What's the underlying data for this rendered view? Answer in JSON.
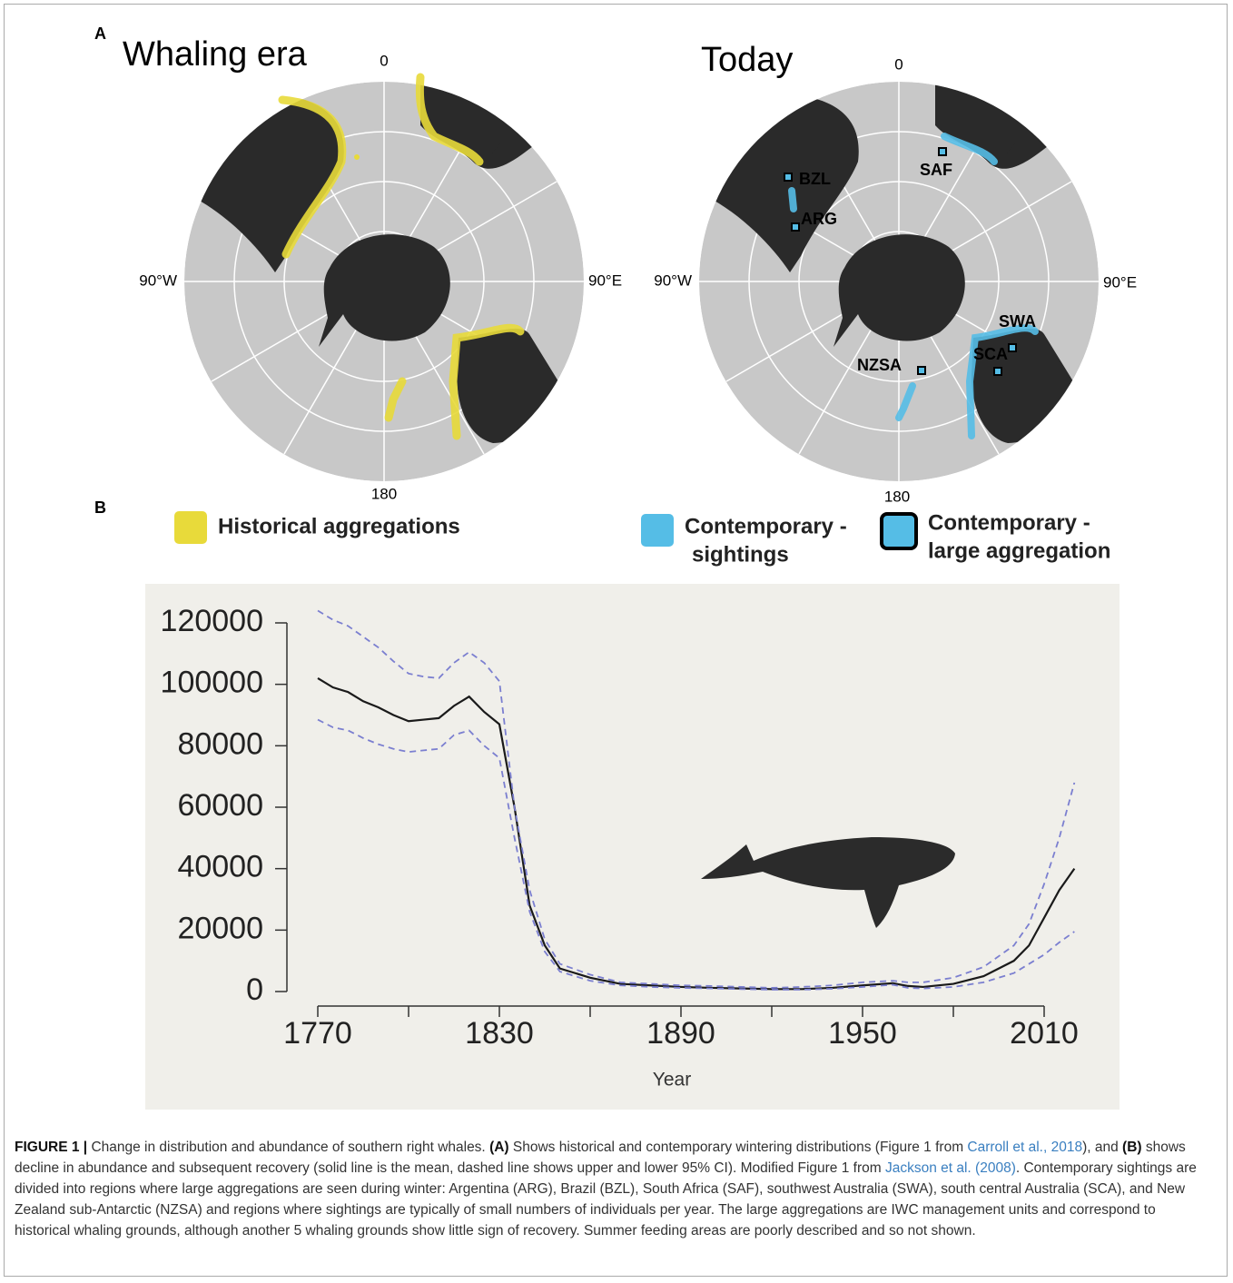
{
  "panel_a": {
    "label": "A",
    "maps": [
      {
        "title": "Whaling era",
        "directions": {
          "top": "0",
          "left": "90°W",
          "right": "90°E",
          "bottom": "180"
        }
      },
      {
        "title": "Today",
        "directions": {
          "top": "0",
          "left": "90°W",
          "right": "90°E",
          "bottom": "180"
        },
        "sites": [
          "BZL",
          "ARG",
          "SAF",
          "SWA",
          "SCA",
          "NZSA"
        ]
      }
    ],
    "legend": {
      "historical": "Historical aggregations",
      "sightings": [
        "Contemporary -",
        "sightings"
      ],
      "large": [
        "Contemporary -",
        "large aggregation"
      ]
    }
  },
  "panel_b": {
    "label": "B"
  },
  "chart_data": {
    "type": "line",
    "x_label": "Year",
    "x": [
      1770,
      1775,
      1780,
      1785,
      1790,
      1795,
      1800,
      1805,
      1810,
      1815,
      1820,
      1825,
      1830,
      1835,
      1840,
      1845,
      1850,
      1860,
      1870,
      1880,
      1890,
      1900,
      1910,
      1920,
      1930,
      1940,
      1950,
      1960,
      1965,
      1970,
      1980,
      1990,
      2000,
      2005,
      2010,
      2015,
      2020
    ],
    "series": [
      {
        "color": "#1a1a1a",
        "dash": false,
        "values": [
          102000,
          99000,
          97500,
          94500,
          92500,
          90000,
          88000,
          88500,
          89000,
          93000,
          96000,
          91000,
          87000,
          60000,
          28000,
          15000,
          7500,
          4500,
          2500,
          2000,
          1500,
          1200,
          1000,
          800,
          800,
          1200,
          2000,
          2700,
          1800,
          1500,
          2500,
          5000,
          10000,
          15000,
          24000,
          33000,
          40000
        ]
      },
      {
        "color": "#7b7fd0",
        "dash": true,
        "values": [
          124000,
          121000,
          119000,
          115500,
          112000,
          107500,
          103500,
          102500,
          102000,
          107000,
          110500,
          107000,
          101000,
          60000,
          33000,
          17000,
          9000,
          5500,
          3000,
          2500,
          2000,
          1800,
          1500,
          1200,
          1500,
          2000,
          3000,
          3500,
          3000,
          3000,
          4500,
          8000,
          15000,
          22000,
          35000,
          50000,
          68000
        ]
      },
      {
        "color": "#7b7fd0",
        "dash": true,
        "values": [
          88500,
          86000,
          85000,
          82500,
          80500,
          79000,
          78000,
          78500,
          79000,
          83500,
          85000,
          80000,
          76000,
          50000,
          26000,
          13000,
          6500,
          3500,
          2000,
          1500,
          1200,
          1000,
          800,
          600,
          600,
          900,
          1500,
          2200,
          1200,
          1000,
          1500,
          3000,
          6000,
          9000,
          12000,
          16000,
          19500
        ]
      }
    ],
    "xlim": [
      1770,
      2020
    ],
    "ylim": [
      0,
      120000
    ],
    "xticks": [
      1770,
      1830,
      1890,
      1950,
      2010
    ],
    "xticks_minor": [
      1800,
      1860,
      1920,
      1980
    ],
    "yticks": [
      0,
      20000,
      40000,
      60000,
      80000,
      100000,
      120000
    ]
  },
  "caption": {
    "parts": [
      "FIGURE 1 |",
      " Change in distribution and abundance of southern right whales. ",
      "(A)",
      " Shows historical and contemporary wintering distributions (Figure 1 from ",
      "Carroll et al., 2018",
      "), and ",
      "(B)",
      " shows decline in abundance and subsequent recovery (solid line is the mean, dashed line shows upper and lower 95% CI). Modified Figure 1 from ",
      "Jackson et al. (2008)",
      ". Contemporary sightings are divided into regions where large aggregations are seen during winter: Argentina (ARG), Brazil (BZL), South Africa (SAF), southwest Australia (SWA), south central Australia (SCA), and New Zealand sub-Antarctic (NZSA) and regions where sightings are typically of small numbers of individuals per year. The large aggregations are IWC management units and correspond to historical whaling grounds, although another 5 whaling grounds show little sign of recovery. Summer feeding areas are poorly described and so not shown."
    ]
  }
}
